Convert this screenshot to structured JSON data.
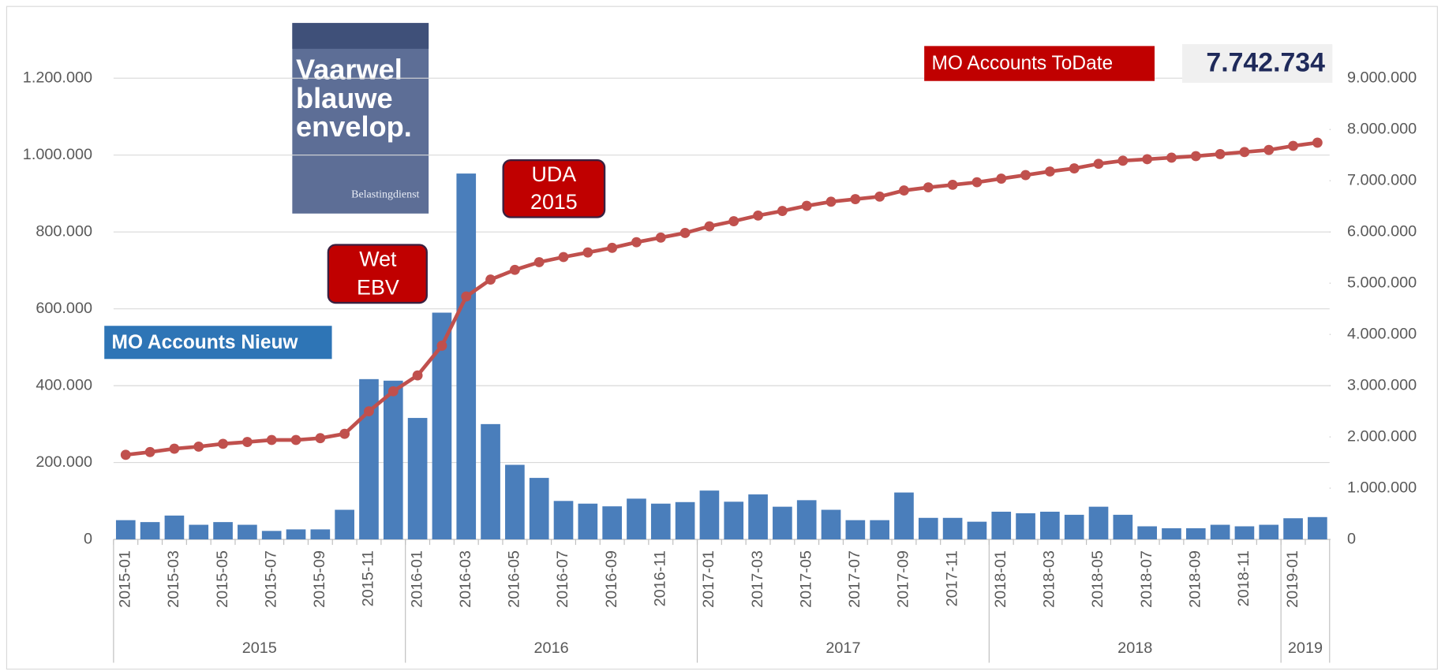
{
  "chart_data": {
    "type": "bar_line",
    "categories": [
      "2015-01",
      null,
      "2015-03",
      null,
      "2015-05",
      null,
      "2015-07",
      null,
      "2015-09",
      null,
      "2015-11",
      null,
      "2016-01",
      null,
      "2016-03",
      null,
      "2016-05",
      null,
      "2016-07",
      null,
      "2016-09",
      null,
      "2016-11",
      null,
      "2017-01",
      null,
      "2017-03",
      null,
      "2017-05",
      null,
      "2017-07",
      null,
      "2017-09",
      null,
      "2017-11",
      null,
      "2018-01",
      null,
      "2018-03",
      null,
      "2018-05",
      null,
      "2018-07",
      null,
      "2018-09",
      null,
      "2018-11",
      null,
      "2019-01",
      null
    ],
    "year_groups": {
      "labels": [
        "2015",
        "2016",
        "2017",
        "2018",
        "2019"
      ],
      "counts": [
        12,
        12,
        12,
        12,
        2
      ]
    },
    "series": [
      {
        "name": "MO Accounts Nieuw",
        "type": "bar",
        "color": "#4a7ebb",
        "values": [
          50000,
          45000,
          62000,
          38000,
          45000,
          38000,
          22000,
          26000,
          26000,
          77000,
          417000,
          413000,
          316000,
          590000,
          952000,
          300000,
          194000,
          160000,
          100000,
          93000,
          86000,
          106000,
          93000,
          97000,
          127000,
          98000,
          117000,
          85000,
          102000,
          77000,
          50000,
          50000,
          122000,
          56000,
          56000,
          46000,
          72000,
          68000,
          72000,
          64000,
          85000,
          64000,
          34000,
          29000,
          29000,
          38000,
          34000,
          38000,
          55000,
          58000
        ]
      },
      {
        "name": "MO Accounts ToDate",
        "type": "line",
        "axis": "y2",
        "color": "#c0504d",
        "values": [
          1650000,
          1705000,
          1770000,
          1810000,
          1865000,
          1900000,
          1940000,
          1940000,
          1975000,
          2060000,
          2500000,
          2890000,
          3200000,
          3780000,
          4740000,
          5070000,
          5260000,
          5410000,
          5510000,
          5600000,
          5690000,
          5800000,
          5890000,
          5980000,
          6110000,
          6210000,
          6320000,
          6410000,
          6510000,
          6590000,
          6640000,
          6690000,
          6810000,
          6870000,
          6920000,
          6970000,
          7040000,
          7110000,
          7180000,
          7240000,
          7330000,
          7390000,
          7420000,
          7450000,
          7480000,
          7520000,
          7560000,
          7600000,
          7680000,
          7742734
        ]
      }
    ],
    "ylim": [
      0,
      1200000
    ],
    "yticks": [
      0,
      {
        "value": 200000,
        "label": "200.000"
      },
      {
        "value": 400000,
        "label": "400.000"
      },
      {
        "value": 600000,
        "label": "600.000"
      },
      {
        "value": 800000,
        "label": "800.000"
      },
      {
        "value": 1000000,
        "label": "1.000.000"
      },
      {
        "value": 1200000,
        "label": "1.200.000"
      }
    ],
    "y2lim": [
      0,
      9000000
    ],
    "y2ticks": [
      0,
      {
        "value": 1000000,
        "label": "1.000.000"
      },
      {
        "value": 2000000,
        "label": "2.000.000"
      },
      {
        "value": 3000000,
        "label": "3.000.000"
      },
      {
        "value": 4000000,
        "label": "4.000.000"
      },
      {
        "value": 5000000,
        "label": "5.000.000"
      },
      {
        "value": 6000000,
        "label": "6.000.000"
      },
      {
        "value": 7000000,
        "label": "7.000.000"
      },
      {
        "value": 8000000,
        "label": "8.000.000"
      },
      {
        "value": 9000000,
        "label": "9.000.000"
      }
    ],
    "grid": true,
    "total": {
      "value": 7742734,
      "label": "7.742.734"
    },
    "annotations": [
      {
        "lines": [
          "Wet",
          "EBV"
        ]
      },
      {
        "lines": [
          "UDA",
          "2015"
        ]
      }
    ],
    "poster": {
      "title_lines": [
        "Vaarwel",
        "blauwe",
        "envelop."
      ],
      "footer": "Belastingdienst"
    }
  }
}
